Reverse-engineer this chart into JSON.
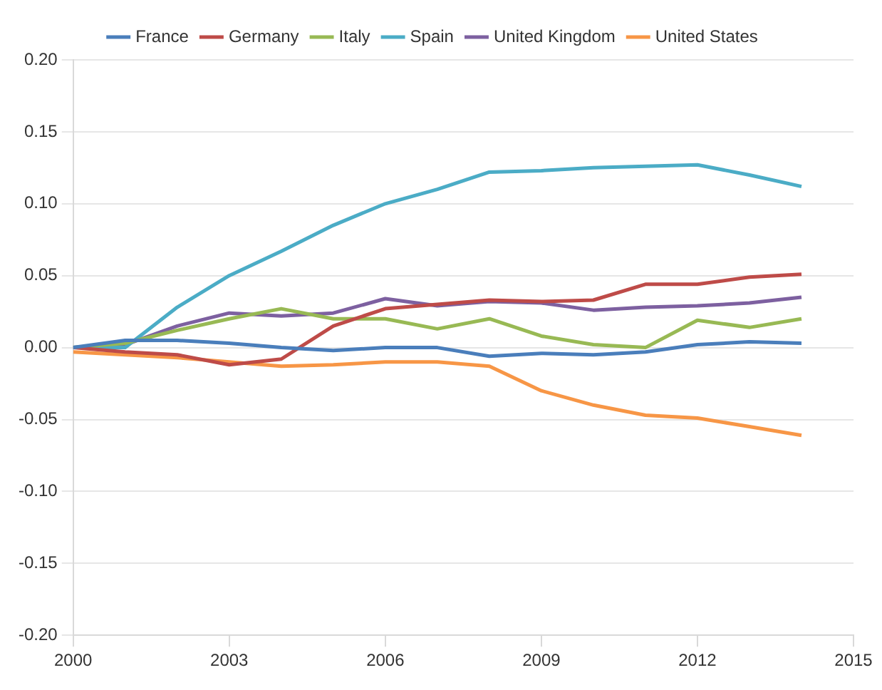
{
  "chart_data": {
    "type": "line",
    "x": [
      2000,
      2001,
      2002,
      2003,
      2004,
      2005,
      2006,
      2007,
      2008,
      2009,
      2010,
      2011,
      2012,
      2013,
      2014
    ],
    "xlim": [
      2000,
      2015
    ],
    "xticks": [
      2000,
      2003,
      2006,
      2009,
      2012,
      2015
    ],
    "ylim": [
      -0.2,
      0.2
    ],
    "yticks": [
      {
        "value": -0.2,
        "label": "-0.20"
      },
      {
        "value": -0.15,
        "label": "-0.15"
      },
      {
        "value": -0.1,
        "label": "-0.10"
      },
      {
        "value": -0.05,
        "label": "-0.05"
      },
      {
        "value": 0,
        "label": "0.00"
      },
      {
        "value": 0.05,
        "label": "0.05"
      },
      {
        "value": 0.1,
        "label": "0.10"
      },
      {
        "value": 0.15,
        "label": "0.15"
      },
      {
        "value": 0.2,
        "label": "0.20"
      }
    ],
    "grid": "y",
    "legend": "top",
    "marker": "none",
    "line_style": "solid",
    "series": [
      {
        "name": "France",
        "color": "#4a7ebb",
        "values": [
          0,
          0.005,
          0.005,
          0.003,
          0,
          -0.002,
          0,
          0,
          -0.006,
          -0.004,
          -0.005,
          -0.003,
          0.002,
          0.004,
          0.003
        ]
      },
      {
        "name": "Germany",
        "color": "#be4b48",
        "values": [
          0,
          -0.003,
          -0.005,
          -0.012,
          -0.008,
          0.015,
          0.027,
          0.03,
          0.033,
          0.032,
          0.033,
          0.044,
          0.044,
          0.049,
          0.051
        ]
      },
      {
        "name": "Italy",
        "color": "#98b954",
        "values": [
          0,
          0.003,
          0.012,
          0.02,
          0.027,
          0.02,
          0.02,
          0.013,
          0.02,
          0.008,
          0.002,
          0,
          0.019,
          0.014,
          0.02
        ]
      },
      {
        "name": "Spain",
        "color": "#4bacc6",
        "values": [
          0,
          0,
          0.028,
          0.05,
          0.067,
          0.085,
          0.1,
          0.11,
          0.122,
          0.123,
          0.125,
          0.126,
          0.127,
          0.12,
          0.112
        ]
      },
      {
        "name": "United Kingdom",
        "color": "#7d60a0",
        "values": [
          0,
          0.002,
          0.015,
          0.024,
          0.022,
          0.024,
          0.034,
          0.029,
          0.032,
          0.031,
          0.026,
          0.028,
          0.029,
          0.031,
          0.035
        ]
      },
      {
        "name": "United States",
        "color": "#f79646",
        "values": [
          -0.003,
          -0.005,
          -0.007,
          -0.01,
          -0.013,
          -0.012,
          -0.01,
          -0.01,
          -0.013,
          -0.03,
          -0.04,
          -0.047,
          -0.049,
          -0.055,
          -0.061
        ]
      }
    ]
  }
}
